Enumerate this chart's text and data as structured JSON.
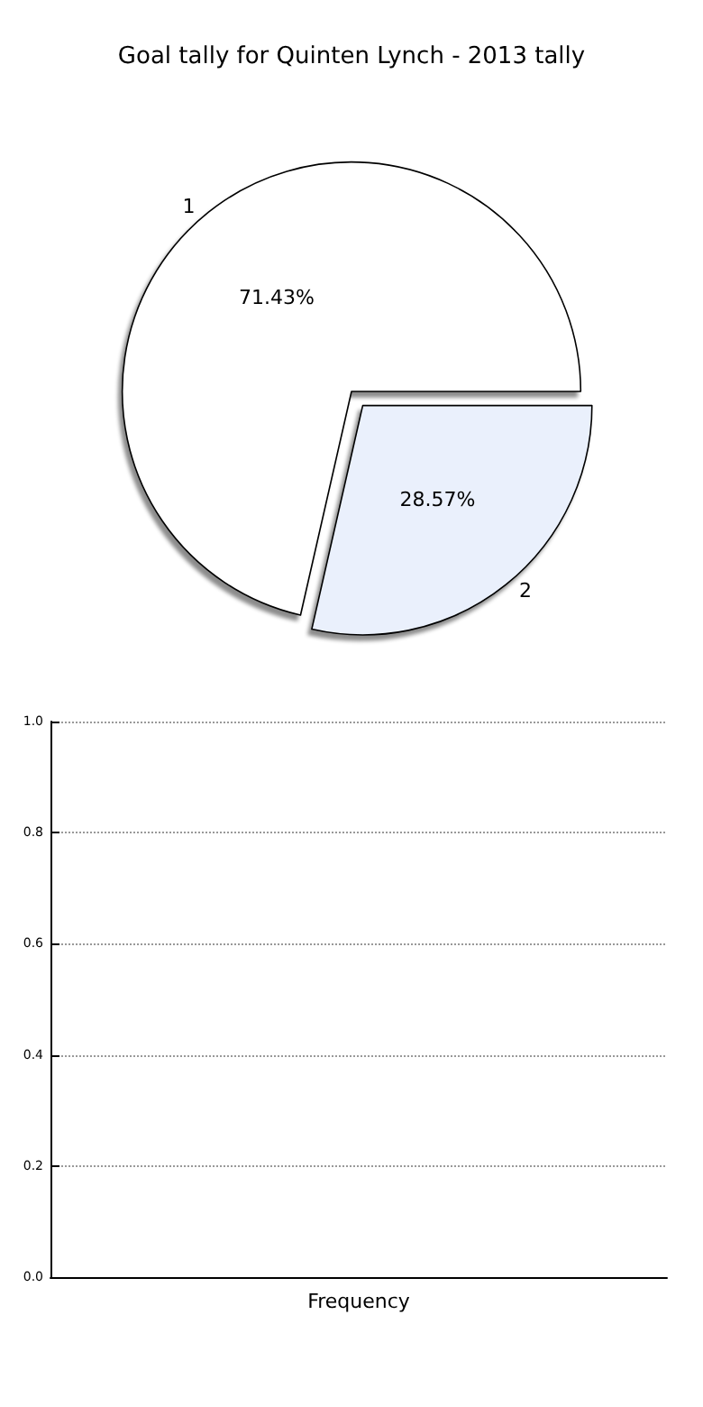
{
  "chart_data": [
    {
      "type": "pie",
      "title": "Goal tally for Quinten Lynch - 2013 tally",
      "categories": [
        "1",
        "2"
      ],
      "values": [
        71.43,
        28.57
      ],
      "colors": [
        "#ffffff",
        "#eaf0fc"
      ],
      "value_labels": [
        "71.43%",
        "28.57%"
      ]
    },
    {
      "type": "bar",
      "xlabel": "Frequency",
      "categories": [
        null
      ],
      "values": [
        null
      ],
      "ylim": [
        0,
        1
      ],
      "yticks": [
        {
          "value": 0,
          "label": "0.0"
        },
        {
          "value": 0.2,
          "label": "0.2"
        },
        {
          "value": 0.4,
          "label": "0.4"
        },
        {
          "value": 0.6,
          "label": "0.6"
        },
        {
          "value": 0.8,
          "label": "0.8"
        },
        {
          "value": 1,
          "label": "1.0"
        }
      ],
      "grid": "y"
    }
  ]
}
